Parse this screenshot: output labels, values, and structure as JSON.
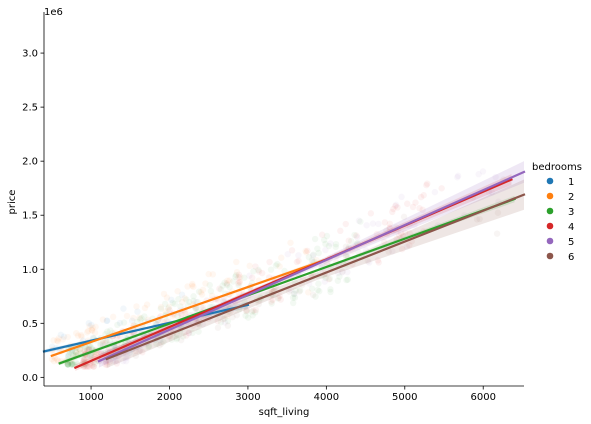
{
  "chart_data": {
    "type": "scatter",
    "title": "",
    "xlabel": "sqft_living",
    "ylabel": "price",
    "offset_text": "1e6",
    "xlim": [
      400,
      6520
    ],
    "ylim": [
      -0.08,
      3.38
    ],
    "x_ticks": [
      1000,
      2000,
      3000,
      4000,
      5000,
      6000
    ],
    "x_tick_labels": [
      "1000",
      "2000",
      "3000",
      "4000",
      "5000",
      "6000"
    ],
    "y_ticks": [
      0.0,
      0.5,
      1.0,
      1.5,
      2.0,
      2.5,
      3.0
    ],
    "y_tick_labels": [
      "0.0",
      "0.5",
      "1.0",
      "1.5",
      "2.0",
      "2.5",
      "3.0"
    ],
    "grid": false,
    "legend_title": "bedrooms",
    "legend_position": "right",
    "series": [
      {
        "name": "1",
        "color": "#1f77b4",
        "regression": {
          "x": [
            400,
            3000
          ],
          "y": [
            0.24,
            0.67
          ]
        },
        "ci_halfwidth": 0.03,
        "cloud": {
          "x": [
            500,
            2400
          ],
          "y": [
            0.15,
            1.0
          ]
        }
      },
      {
        "name": "2",
        "color": "#ff7f0e",
        "regression": {
          "x": [
            500,
            3960
          ],
          "y": [
            0.2,
            1.08
          ]
        },
        "ci_halfwidth": 0.02,
        "cloud": {
          "x": [
            500,
            3900
          ],
          "y": [
            0.15,
            1.3
          ]
        }
      },
      {
        "name": "3",
        "color": "#2ca02c",
        "regression": {
          "x": [
            600,
            6400
          ],
          "y": [
            0.13,
            1.65
          ]
        },
        "ci_halfwidth": 0.03,
        "cloud": {
          "x": [
            700,
            4500
          ],
          "y": [
            0.12,
            1.6
          ]
        }
      },
      {
        "name": "4",
        "color": "#d62728",
        "regression": {
          "x": [
            800,
            6360
          ],
          "y": [
            0.09,
            1.83
          ]
        },
        "ci_halfwidth": 0.05,
        "cloud": {
          "x": [
            900,
            5500
          ],
          "y": [
            0.1,
            2.5
          ]
        }
      },
      {
        "name": "5",
        "color": "#9467bd",
        "regression": {
          "x": [
            1100,
            6520
          ],
          "y": [
            0.15,
            1.9
          ]
        },
        "ci_halfwidth": 0.1,
        "cloud": {
          "x": [
            1100,
            6200
          ],
          "y": [
            0.15,
            3.2
          ]
        }
      },
      {
        "name": "6",
        "color": "#8c564b",
        "regression": {
          "x": [
            1200,
            6520
          ],
          "y": [
            0.17,
            1.69
          ]
        },
        "ci_halfwidth": 0.14,
        "cloud": {
          "x": [
            1300,
            6300
          ],
          "y": [
            0.2,
            2.6
          ]
        }
      }
    ]
  }
}
